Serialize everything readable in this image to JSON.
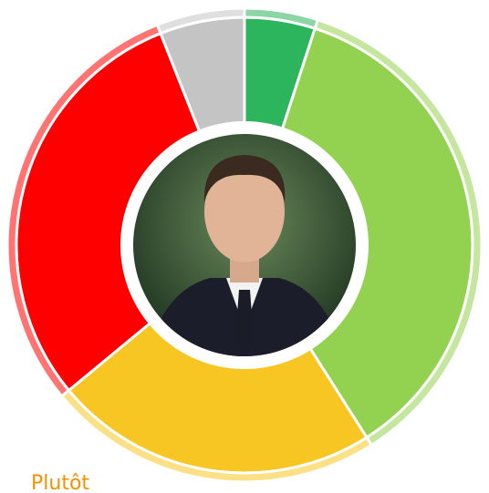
{
  "chart_data": {
    "type": "donut",
    "categories": [
      null,
      null,
      null,
      null,
      null
    ],
    "values": [
      5,
      36,
      23,
      30,
      6
    ],
    "colors": [
      "#2db55d",
      "#93d150",
      "#f7c623",
      "#ff0000",
      "#c4c4c4"
    ],
    "label": "Plutôt"
  }
}
